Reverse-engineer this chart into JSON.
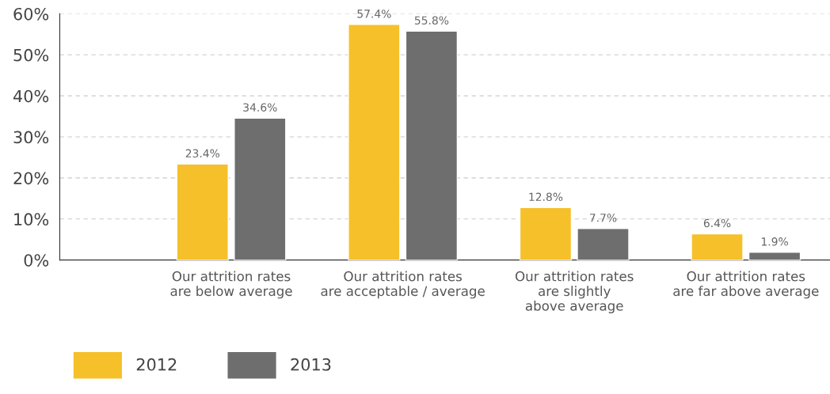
{
  "chart_data": {
    "type": "bar",
    "categories": [
      "Our attrition rates\nare below average",
      "Our attrition rates\nare acceptable / average",
      "Our attrition rates\nare slightly\nabove average",
      "Our attrition rates\nare far above average"
    ],
    "series": [
      {
        "name": "2012",
        "color": "#f5c02a",
        "values": [
          23.4,
          57.4,
          12.8,
          6.4
        ],
        "value_labels": [
          "23.4%",
          "57.4%",
          "12.8%",
          "6.4%"
        ]
      },
      {
        "name": "2013",
        "color": "#6e6e6e",
        "values": [
          34.6,
          55.8,
          7.7,
          1.9
        ],
        "value_labels": [
          "34.6%",
          "55.8%",
          "7.7%",
          "1.9%"
        ]
      }
    ],
    "ylim": [
      0,
      60
    ],
    "yticks": [
      {
        "value": 0,
        "label": "0%"
      },
      {
        "value": 10,
        "label": "10%"
      },
      {
        "value": 20,
        "label": "20%"
      },
      {
        "value": 30,
        "label": "30%"
      },
      {
        "value": 40,
        "label": "40%"
      },
      {
        "value": 50,
        "label": "50%"
      },
      {
        "value": 60,
        "label": "60%"
      }
    ],
    "grid": "y",
    "legend": "bottom left"
  }
}
